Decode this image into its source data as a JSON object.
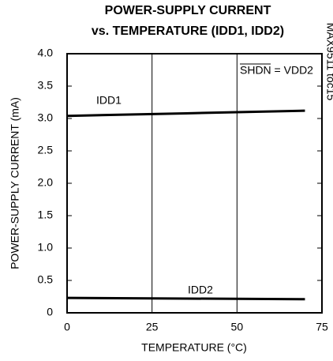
{
  "chart_data": {
    "type": "line",
    "title": "POWER-SUPPLY CURRENT",
    "subtitle": "vs. TEMPERATURE (IDD1, IDD2)",
    "x_label": "TEMPERATURE (°C)",
    "y_label": "POWER-SUPPLY CURRENT (mA)",
    "annotations": [
      "IDD1",
      "IDD2",
      "SHDN = VDD2",
      "MAX9511 toc15"
    ],
    "x": [
      0,
      35,
      70
    ],
    "series": [
      {
        "name": "IDD1",
        "color": "#000000",
        "values": [
          3.04,
          3.08,
          3.12
        ]
      },
      {
        "name": "IDD2",
        "color": "#000000",
        "values": [
          0.23,
          0.22,
          0.21
        ]
      }
    ],
    "xlim": [
      0,
      75
    ],
    "xticks": [
      0,
      25,
      50,
      75
    ],
    "ylim": [
      0,
      4
    ],
    "yticks": [
      0,
      {
        "value": 0.5,
        "label": "0.5"
      },
      {
        "value": 1,
        "label": "1.0"
      },
      {
        "value": 1.5,
        "label": "1.5"
      },
      {
        "value": 2,
        "label": "2.0"
      },
      {
        "value": 2.5,
        "label": "2.5"
      },
      {
        "value": 3,
        "label": "3.0"
      },
      {
        "value": 3.5,
        "label": "3.5"
      },
      {
        "value": 4,
        "label": "4.0"
      }
    ],
    "grid": true
  }
}
